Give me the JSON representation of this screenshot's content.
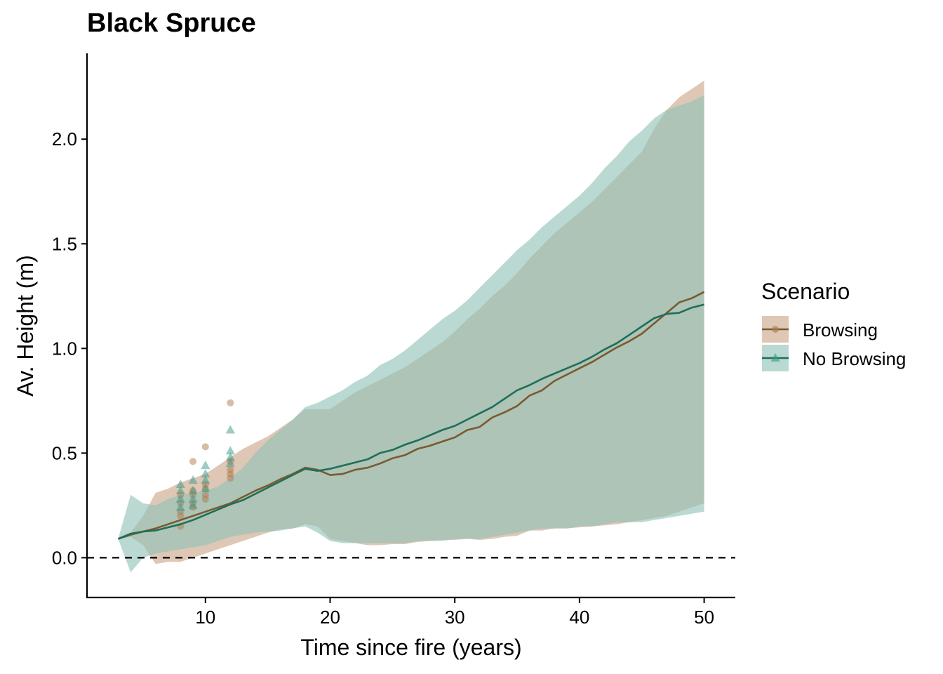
{
  "chart_data": {
    "type": "line",
    "title": "Black Spruce",
    "xlabel": "Time since fire (years)",
    "ylabel": "Av. Height (m)",
    "xlim": [
      0.5,
      52.5
    ],
    "ylim": [
      -0.19,
      2.41
    ],
    "xticks": [
      10,
      20,
      30,
      40,
      50
    ],
    "yticks": [
      0.0,
      0.5,
      1.0,
      1.5,
      2.0
    ],
    "ytick_labels": [
      "0.0",
      "0.5",
      "1.0",
      "1.5",
      "2.0"
    ],
    "grid": false,
    "legend": {
      "title": "Scenario",
      "position": "right"
    },
    "reference_line": {
      "y": 0,
      "style": "dashed"
    },
    "series": [
      {
        "name": "Browsing",
        "color": "#7a5a2e",
        "ribbon_color": "#caa587",
        "marker": "circle",
        "x": [
          3,
          4,
          5,
          6,
          7,
          8,
          9,
          10,
          11,
          12,
          13,
          14,
          15,
          16,
          17,
          18,
          19,
          20,
          21,
          22,
          23,
          24,
          25,
          26,
          27,
          28,
          29,
          30,
          31,
          32,
          33,
          34,
          35,
          36,
          37,
          38,
          39,
          40,
          41,
          42,
          43,
          44,
          45,
          46,
          47,
          48,
          49,
          50
        ],
        "mean": [
          0.09,
          0.11,
          0.125,
          0.14,
          0.16,
          0.18,
          0.2,
          0.22,
          0.24,
          0.26,
          0.29,
          0.32,
          0.345,
          0.375,
          0.4,
          0.43,
          0.42,
          0.395,
          0.4,
          0.42,
          0.43,
          0.45,
          0.475,
          0.49,
          0.52,
          0.535,
          0.555,
          0.575,
          0.61,
          0.625,
          0.67,
          0.695,
          0.725,
          0.775,
          0.8,
          0.845,
          0.875,
          0.905,
          0.935,
          0.97,
          1.005,
          1.035,
          1.07,
          1.12,
          1.17,
          1.22,
          1.24,
          1.27
        ],
        "lower": [
          0.09,
          0.1,
          0.06,
          -0.03,
          -0.02,
          -0.02,
          0.0,
          0.02,
          0.04,
          0.06,
          0.08,
          0.1,
          0.12,
          0.135,
          0.14,
          0.16,
          0.15,
          0.09,
          0.08,
          0.07,
          0.06,
          0.06,
          0.065,
          0.065,
          0.075,
          0.08,
          0.085,
          0.085,
          0.09,
          0.085,
          0.09,
          0.1,
          0.105,
          0.13,
          0.13,
          0.14,
          0.14,
          0.145,
          0.15,
          0.155,
          0.16,
          0.17,
          0.18,
          0.19,
          0.2,
          0.22,
          0.24,
          0.26
        ],
        "upper": [
          0.09,
          0.12,
          0.2,
          0.31,
          0.33,
          0.36,
          0.38,
          0.4,
          0.44,
          0.48,
          0.52,
          0.55,
          0.58,
          0.62,
          0.66,
          0.71,
          0.71,
          0.71,
          0.75,
          0.79,
          0.82,
          0.85,
          0.88,
          0.91,
          0.95,
          0.99,
          1.03,
          1.08,
          1.14,
          1.19,
          1.25,
          1.3,
          1.36,
          1.43,
          1.49,
          1.55,
          1.6,
          1.65,
          1.7,
          1.76,
          1.82,
          1.88,
          1.94,
          2.05,
          2.14,
          2.2,
          2.24,
          2.28
        ],
        "observed": [
          {
            "x": 8,
            "y": 0.15
          },
          {
            "x": 8,
            "y": 0.2
          },
          {
            "x": 8,
            "y": 0.22
          },
          {
            "x": 8,
            "y": 0.26
          },
          {
            "x": 8,
            "y": 0.3
          },
          {
            "x": 9,
            "y": 0.24
          },
          {
            "x": 9,
            "y": 0.26
          },
          {
            "x": 9,
            "y": 0.3
          },
          {
            "x": 9,
            "y": 0.32
          },
          {
            "x": 9,
            "y": 0.46
          },
          {
            "x": 10,
            "y": 0.28
          },
          {
            "x": 10,
            "y": 0.3
          },
          {
            "x": 10,
            "y": 0.33
          },
          {
            "x": 10,
            "y": 0.35
          },
          {
            "x": 10,
            "y": 0.53
          },
          {
            "x": 12,
            "y": 0.38
          },
          {
            "x": 12,
            "y": 0.4
          },
          {
            "x": 12,
            "y": 0.42
          },
          {
            "x": 12,
            "y": 0.46
          },
          {
            "x": 12,
            "y": 0.74
          }
        ]
      },
      {
        "name": "No Browsing",
        "color": "#1f6e5a",
        "ribbon_color": "#8fc2b6",
        "marker": "triangle",
        "x": [
          3,
          4,
          5,
          6,
          7,
          8,
          9,
          10,
          11,
          12,
          13,
          14,
          15,
          16,
          17,
          18,
          19,
          20,
          21,
          22,
          23,
          24,
          25,
          26,
          27,
          28,
          29,
          30,
          31,
          32,
          33,
          34,
          35,
          36,
          37,
          38,
          39,
          40,
          41,
          42,
          43,
          44,
          45,
          46,
          47,
          48,
          49,
          50
        ],
        "mean": [
          0.09,
          0.115,
          0.125,
          0.13,
          0.145,
          0.16,
          0.18,
          0.205,
          0.23,
          0.255,
          0.275,
          0.305,
          0.335,
          0.365,
          0.395,
          0.425,
          0.415,
          0.425,
          0.44,
          0.455,
          0.47,
          0.5,
          0.515,
          0.54,
          0.56,
          0.585,
          0.61,
          0.63,
          0.66,
          0.69,
          0.72,
          0.76,
          0.8,
          0.825,
          0.855,
          0.88,
          0.905,
          0.93,
          0.96,
          0.995,
          1.025,
          1.065,
          1.105,
          1.145,
          1.165,
          1.17,
          1.195,
          1.21
        ],
        "lower": [
          0.09,
          -0.07,
          0.0,
          0.02,
          0.03,
          0.04,
          0.05,
          0.06,
          0.08,
          0.1,
          0.11,
          0.12,
          0.125,
          0.13,
          0.14,
          0.15,
          0.12,
          0.08,
          0.07,
          0.07,
          0.07,
          0.07,
          0.07,
          0.07,
          0.08,
          0.08,
          0.08,
          0.09,
          0.09,
          0.09,
          0.1,
          0.11,
          0.12,
          0.13,
          0.14,
          0.14,
          0.14,
          0.15,
          0.15,
          0.16,
          0.17,
          0.17,
          0.17,
          0.18,
          0.19,
          0.2,
          0.21,
          0.22
        ],
        "upper": [
          0.09,
          0.3,
          0.26,
          0.25,
          0.28,
          0.3,
          0.31,
          0.32,
          0.34,
          0.38,
          0.43,
          0.5,
          0.56,
          0.61,
          0.66,
          0.72,
          0.74,
          0.77,
          0.8,
          0.84,
          0.87,
          0.92,
          0.95,
          0.99,
          1.04,
          1.09,
          1.14,
          1.18,
          1.23,
          1.29,
          1.35,
          1.41,
          1.47,
          1.52,
          1.58,
          1.63,
          1.68,
          1.73,
          1.79,
          1.86,
          1.92,
          1.99,
          2.04,
          2.1,
          2.14,
          2.16,
          2.18,
          2.21
        ],
        "observed": [
          {
            "x": 8,
            "y": 0.24
          },
          {
            "x": 8,
            "y": 0.28
          },
          {
            "x": 8,
            "y": 0.32
          },
          {
            "x": 8,
            "y": 0.35
          },
          {
            "x": 9,
            "y": 0.25
          },
          {
            "x": 9,
            "y": 0.28
          },
          {
            "x": 9,
            "y": 0.32
          },
          {
            "x": 9,
            "y": 0.37
          },
          {
            "x": 10,
            "y": 0.33
          },
          {
            "x": 10,
            "y": 0.37
          },
          {
            "x": 10,
            "y": 0.4
          },
          {
            "x": 10,
            "y": 0.44
          },
          {
            "x": 12,
            "y": 0.45
          },
          {
            "x": 12,
            "y": 0.48
          },
          {
            "x": 12,
            "y": 0.51
          },
          {
            "x": 12,
            "y": 0.61
          }
        ]
      }
    ]
  }
}
